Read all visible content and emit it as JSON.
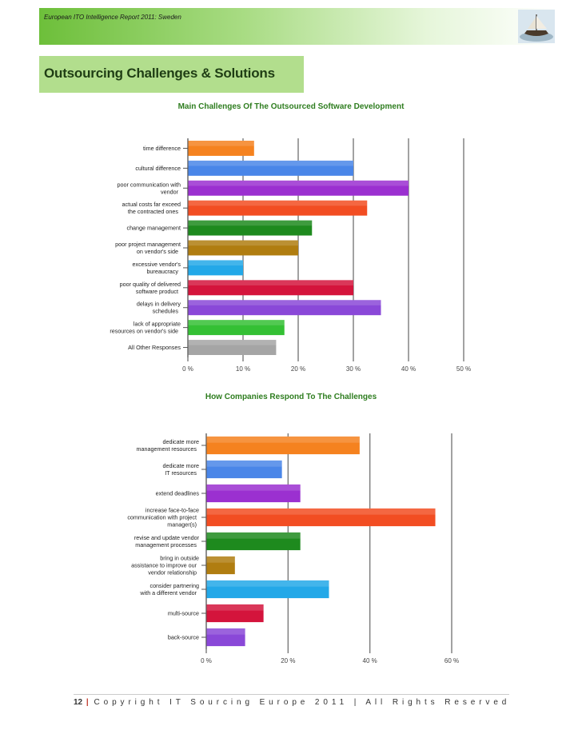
{
  "header": {
    "title": "European ITO Intelligence Report 2011: Sweden",
    "image_icon": "sailing-ship-icon"
  },
  "section": {
    "title": "Outsourcing Challenges & Solutions"
  },
  "chart_data": [
    {
      "type": "bar",
      "orientation": "horizontal",
      "title": "Main Challenges Of The Outsourced Software Development",
      "categories": [
        "time difference",
        "cultural difference",
        "poor communication with\nvendor",
        "actual costs far exceed\nthe contracted ones",
        "change management",
        "poor project management\non vendor's side",
        "excessive vendor's\nbureaucracy",
        "poor quality of delivered\nsoftware product",
        "delays in delivery\nschedules",
        "lack of appropriate\nresources on vendor's side",
        "All Other Responses"
      ],
      "values": [
        12,
        30,
        40,
        32.5,
        22.5,
        20,
        10,
        30,
        35,
        17.5,
        16
      ],
      "colors": [
        "#f5821f",
        "#4a86e8",
        "#9b30d0",
        "#f24d22",
        "#1e8a1e",
        "#b07d10",
        "#23a8e8",
        "#d4143c",
        "#8a48d8",
        "#34c034",
        "#a5a5a5"
      ],
      "xlim": [
        0,
        50
      ],
      "ticks": [
        "0 %",
        "10 %",
        "20 %",
        "30 %",
        "40 %",
        "50 %"
      ],
      "grid": true
    },
    {
      "type": "bar",
      "orientation": "horizontal",
      "title": "How Companies Respond To The Challenges",
      "categories": [
        "dedicate more\nmanagement resources",
        "dedicate more\nIT resources",
        "extend deadlines",
        "increase face-to-face\ncommunication with project\nmanager(s)",
        "revise and update vendor\nmanagement processes",
        "bring in outside\nassistance to improve our\nvendor relationship",
        "consider partnering\nwith a different vendor",
        "multi-source",
        "back-source"
      ],
      "values": [
        37.5,
        18.5,
        23,
        56,
        23,
        7,
        30,
        14,
        9.5
      ],
      "colors": [
        "#f5821f",
        "#4a86e8",
        "#9b30d0",
        "#f24d22",
        "#1e8a1e",
        "#b07d10",
        "#23a8e8",
        "#d4143c",
        "#8a48d8"
      ],
      "xlim": [
        0,
        60
      ],
      "ticks": [
        "0 %",
        "20 %",
        "40 %",
        "60 %"
      ],
      "grid": true
    }
  ],
  "footer": {
    "page_number": "12",
    "separator": "|",
    "copyright": "Copyright IT Sourcing Europe 2011 | All Rights Reserved"
  }
}
